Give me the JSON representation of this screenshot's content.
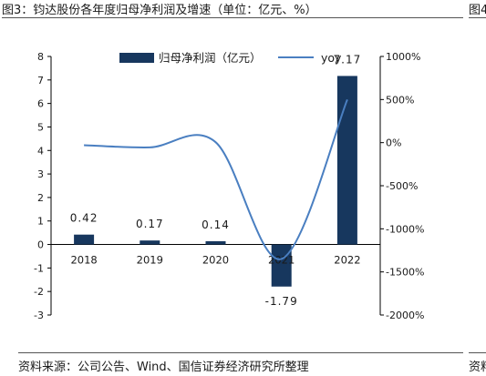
{
  "figure": {
    "title": "图3：钧达股份各年度归母净利润及增速（单位：亿元、%）",
    "next_title_fragment": "图4",
    "source": "资料来源：公司公告、Wind、国信证券经济研究所整理",
    "next_source_fragment": "资料"
  },
  "colors": {
    "bar": "#17375e",
    "line": "#4a7fc1",
    "axis": "#000000",
    "text": "#1a1a1a"
  },
  "chart_data": {
    "type": "bar",
    "categories": [
      "2018",
      "2019",
      "2020",
      "2021",
      "2022"
    ],
    "series": [
      {
        "name": "归母净利润（亿元）",
        "type": "bar",
        "axis": "left",
        "values": [
          0.42,
          0.17,
          0.14,
          -1.79,
          7.17
        ]
      },
      {
        "name": "yoy",
        "type": "line",
        "axis": "right",
        "smooth": true,
        "values": [
          -30,
          -55,
          5,
          -1350,
          500
        ]
      }
    ],
    "data_labels": [
      "0.42",
      "0.17",
      "0.14",
      "-1.79",
      "7.17"
    ],
    "left_axis": {
      "ylim": [
        -3,
        8
      ],
      "ticks": [
        "-3",
        "-2",
        "-1",
        "0",
        "1",
        "2",
        "3",
        "4",
        "5",
        "6",
        "7",
        "8"
      ]
    },
    "right_axis": {
      "ylim": [
        -2000,
        1000
      ],
      "ticks": [
        "-2000%",
        "-1500%",
        "-1000%",
        "-500%",
        "0%",
        "500%",
        "1000%"
      ]
    },
    "legend": [
      "归母净利润（亿元）",
      "yoy"
    ],
    "legend_position": "top-center",
    "grid": false
  }
}
